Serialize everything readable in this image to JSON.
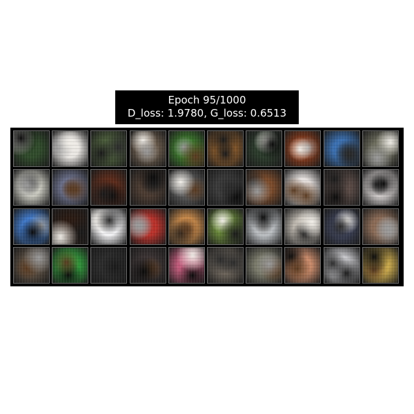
{
  "title": {
    "line1": "Epoch 95/1000",
    "line2": "D_loss: 1.9780, G_loss: 0.6513"
  },
  "grid": {
    "rows": 4,
    "cols": 10,
    "tiles": [
      [
        "#2f4a2a",
        "#e9e6e2",
        "#4b5e3a",
        "#6a5a4a",
        "#3b7a2b",
        "#8a5a2a",
        "#2a3a2a",
        "#8a3a1a",
        "#3a6fb0",
        "#6a6a5a"
      ],
      [
        "#c9c9bf",
        "#6a6f8a",
        "#5a2a1a",
        "#4a3a30",
        "#5a5a5a",
        "#3a3a3a",
        "#7a4a2a",
        "#e7e2e0",
        "#5a4a45",
        "#d5d0cf"
      ],
      [
        "#3f78c8",
        "#2a1a12",
        "#f2f2f4",
        "#b8312a",
        "#c98a4a",
        "#6a8a3a",
        "#c0c4c8",
        "#bdb7ae",
        "#3a3f55",
        "#8a6a55"
      ],
      [
        "#5a4d40",
        "#2f9a3a",
        "#2a2a2a",
        "#3a3232",
        "#c05a7a",
        "#6a6258",
        "#7a7a6a",
        "#c98a6a",
        "#c8c8cc",
        "#c6a64a"
      ]
    ]
  }
}
